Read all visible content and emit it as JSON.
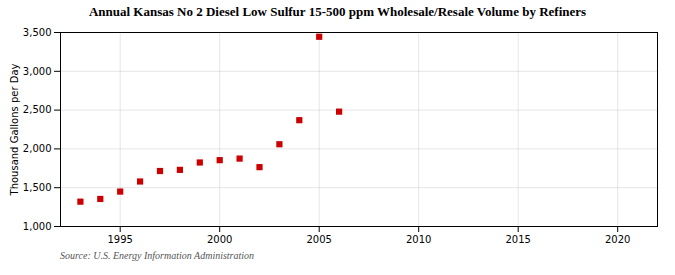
{
  "chart_data": {
    "type": "scatter",
    "title": "Annual Kansas No 2 Diesel Low Sulfur 15-500 ppm Wholesale/Resale Volume by Refiners",
    "ylabel": "Thousand Gallons per Day",
    "source": "Source: U.S. Energy Information Administration",
    "x": [
      1993,
      1994,
      1995,
      1996,
      1997,
      1998,
      1999,
      2000,
      2001,
      2002,
      2003,
      2004,
      2005,
      2006
    ],
    "values": [
      1320,
      1355,
      1450,
      1580,
      1715,
      1730,
      1825,
      1855,
      1875,
      1765,
      2060,
      2370,
      3445,
      2480
    ],
    "color": "#cc0000",
    "marker": "square",
    "xlim": [
      1992,
      2022
    ],
    "ylim": [
      1000,
      3500
    ],
    "xticks": [
      1995,
      2000,
      2005,
      2010,
      2015,
      2020
    ],
    "yticks": [
      {
        "value": 1000,
        "label": "1,000"
      },
      {
        "value": 1500,
        "label": "1,500"
      },
      {
        "value": 2000,
        "label": "2,000"
      },
      {
        "value": 2500,
        "label": "2,500"
      },
      {
        "value": 3000,
        "label": "3,000"
      },
      {
        "value": 3500,
        "label": "3,500"
      }
    ],
    "grid": true
  }
}
